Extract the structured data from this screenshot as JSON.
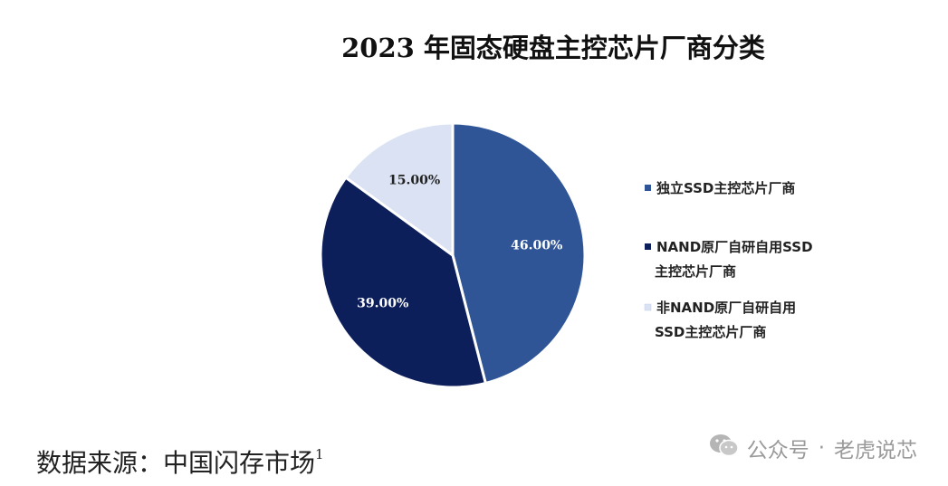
{
  "chart_data": {
    "type": "pie",
    "title": "2023 年固态硬盘主控芯片厂商分类",
    "slices": [
      {
        "label": [
          "独立SSD主控芯片厂商"
        ],
        "value": 46.0,
        "display": "46.00%",
        "color": "#2f5597"
      },
      {
        "label": [
          "NAND原厂自研自用SSD",
          "主控芯片厂商"
        ],
        "value": 39.0,
        "display": "39.00%",
        "color": "#0d1f5a"
      },
      {
        "label": [
          "非NAND原厂自研自用",
          "SSD主控芯片厂商"
        ],
        "value": 15.0,
        "display": "15.00%",
        "color": "#dae2f3"
      }
    ],
    "legend_position": "right",
    "data_label_colors": [
      "#ffffff",
      "#ffffff",
      "#222222"
    ]
  },
  "source": {
    "text": "数据来源：中国闪存市场",
    "footnote": "1"
  },
  "watermark": {
    "account": "公众号",
    "separator": "·",
    "name": "老虎说芯"
  }
}
